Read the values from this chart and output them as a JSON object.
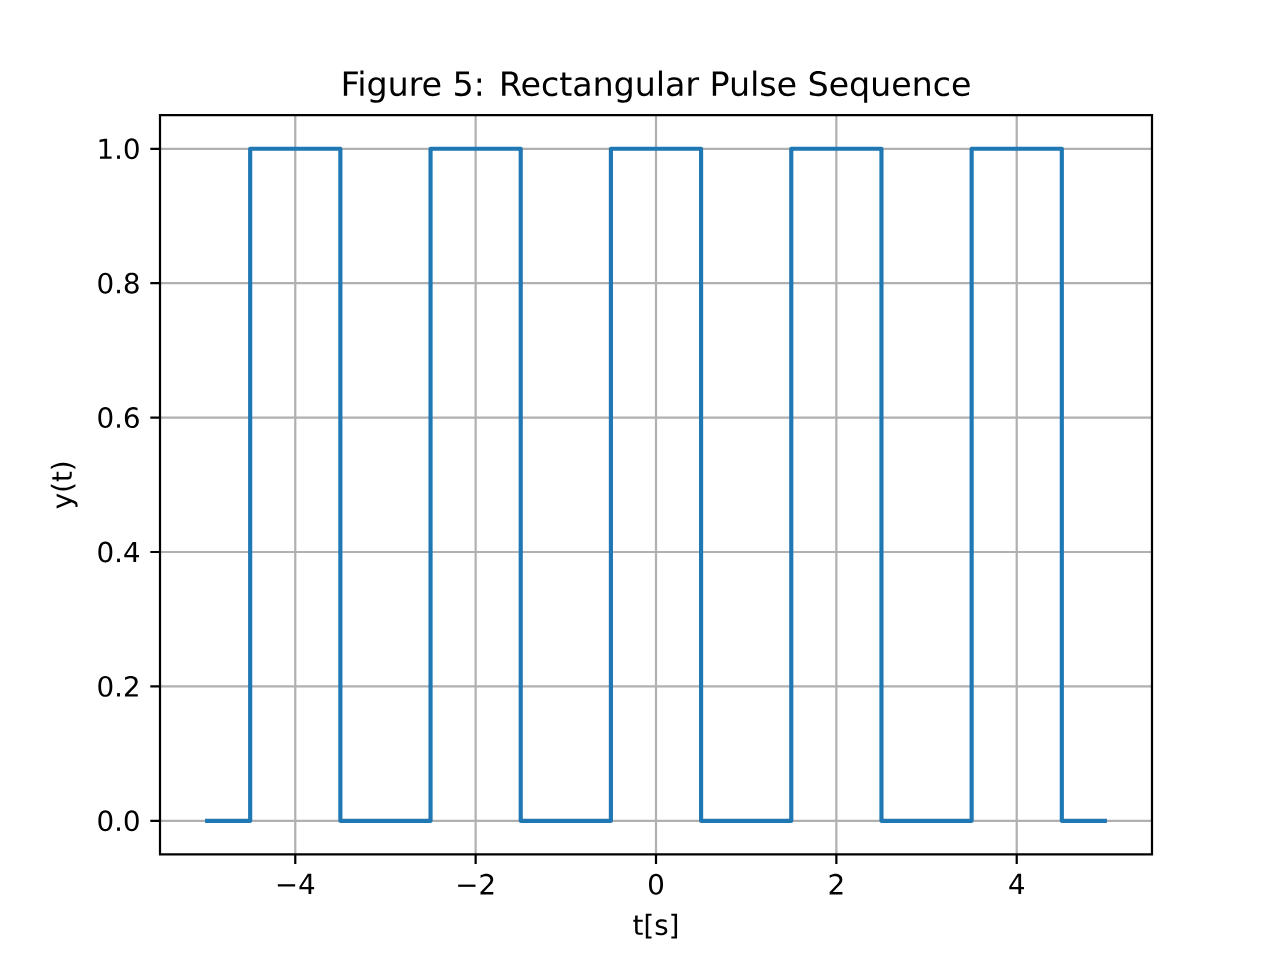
{
  "chart_data": {
    "type": "line",
    "title": "Figure 5: Rectangular Pulse Sequence",
    "xlabel": "t[s]",
    "ylabel": "y(t)",
    "x": [
      -5,
      -4.5,
      -4.5,
      -3.5,
      -3.5,
      -2.5,
      -2.5,
      -1.5,
      -1.5,
      -0.5,
      -0.5,
      0.5,
      0.5,
      1.5,
      1.5,
      2.5,
      2.5,
      3.5,
      3.5,
      4.5,
      4.5,
      5
    ],
    "values": [
      0,
      0,
      1,
      1,
      0,
      0,
      1,
      1,
      0,
      0,
      1,
      1,
      0,
      0,
      1,
      1,
      0,
      0,
      1,
      1,
      0,
      0
    ],
    "color": "#1f77b4",
    "xlim": [
      -5.5,
      5.5
    ],
    "xticks": [
      {
        "value": -4,
        "label": "−4"
      },
      {
        "value": -2,
        "label": "−2"
      },
      0,
      2,
      4
    ],
    "ylim": [
      -0.05,
      1.05
    ],
    "yticks": [
      {
        "value": 0,
        "label": "0.0"
      },
      {
        "value": 0.2,
        "label": "0.2"
      },
      {
        "value": 0.4,
        "label": "0.4"
      },
      {
        "value": 0.6,
        "label": "0.6"
      },
      {
        "value": 0.8,
        "label": "0.8"
      },
      {
        "value": 1,
        "label": "1.0"
      }
    ],
    "grid": true
  }
}
